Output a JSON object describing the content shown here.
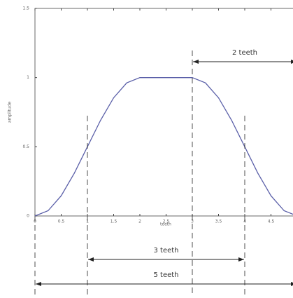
{
  "chart_data": {
    "type": "line",
    "xlabel": "teeth",
    "ylabel": "amplitude",
    "x": [
      0,
      0.25,
      0.5,
      0.75,
      1,
      1.25,
      1.5,
      1.75,
      2,
      2.25,
      2.5,
      2.75,
      3,
      3.25,
      3.5,
      3.75,
      4,
      4.25,
      4.5,
      4.75,
      5
    ],
    "series": [
      {
        "color": "#5a5fa8",
        "values": [
          0,
          0.038,
          0.146,
          0.309,
          0.5,
          0.691,
          0.854,
          0.962,
          1,
          1,
          1,
          1,
          1,
          0.962,
          0.854,
          0.691,
          0.5,
          0.309,
          0.146,
          0.038,
          0
        ]
      }
    ],
    "xlim": [
      0,
      5
    ],
    "ylim": [
      0,
      1.5
    ],
    "xticks": [
      0,
      0.5,
      1,
      1.5,
      2,
      2.5,
      3,
      3.5,
      4,
      4.5
    ],
    "yticks": [
      0,
      0.5,
      1,
      1.5
    ],
    "annotations": [
      {
        "text": "2 teeth",
        "span": [
          3,
          5
        ]
      },
      {
        "text": "3 teeth",
        "span": [
          1,
          4
        ]
      },
      {
        "text": "5 teeth",
        "span": [
          0,
          5
        ]
      }
    ]
  }
}
